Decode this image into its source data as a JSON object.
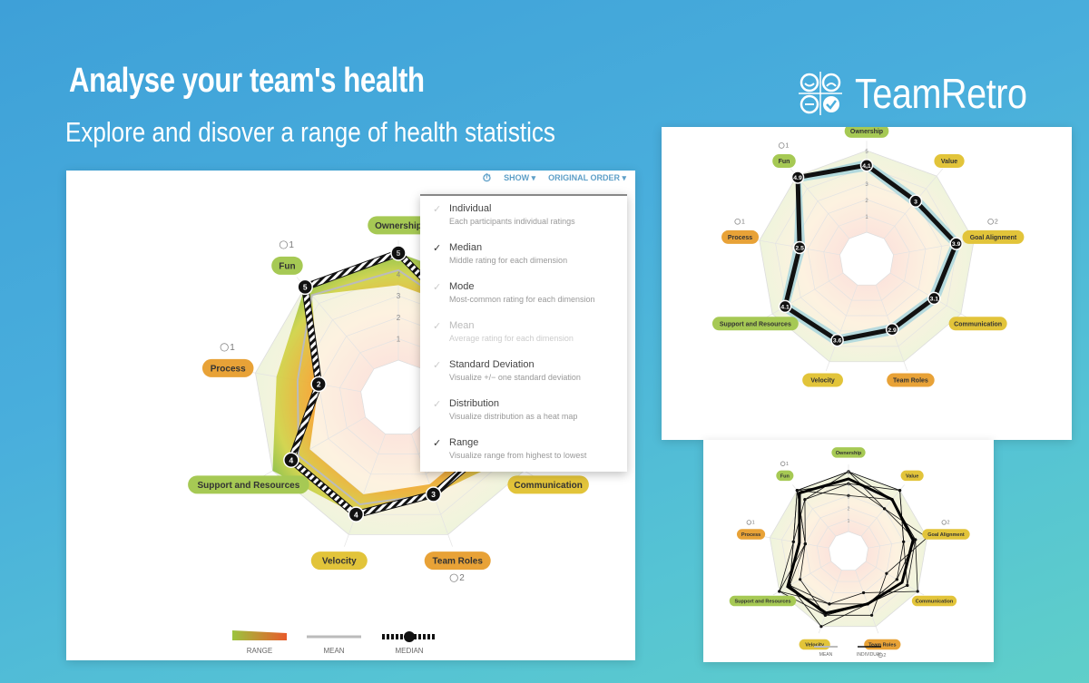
{
  "header": {
    "title": "Analyse your team's health",
    "subtitle": "Explore and disover a range of health statistics"
  },
  "brand": {
    "name": "TeamRetro"
  },
  "colors": {
    "green_label": "#a6c954",
    "yellow_label": "#e2c43a",
    "orange_label": "#e8a237",
    "accent": "#5fa0c8"
  },
  "toolbar": {
    "timer_icon": "timer-icon",
    "show_label": "SHOW ▾",
    "order_label": "ORIGINAL ORDER ▾"
  },
  "show_menu": [
    {
      "label": "Individual",
      "desc": "Each participants individual ratings",
      "checked": false,
      "dim": false
    },
    {
      "label": "Median",
      "desc": "Middle rating for each dimension",
      "checked": true,
      "dim": false
    },
    {
      "label": "Mode",
      "desc": "Most-common rating for each dimension",
      "checked": false,
      "dim": false
    },
    {
      "label": "Mean",
      "desc": "Average rating for each dimension",
      "checked": false,
      "dim": true
    },
    {
      "label": "Standard Deviation",
      "desc": "Visualize +/− one standard deviation",
      "checked": false,
      "dim": false
    },
    {
      "label": "Distribution",
      "desc": "Visualize distribution as a heat map",
      "checked": false,
      "dim": false
    },
    {
      "label": "Range",
      "desc": "Visualize range from highest to lowest",
      "checked": true,
      "dim": false
    }
  ],
  "chart_data": [
    {
      "type": "radar",
      "name": "main",
      "dimensions": [
        "Ownership",
        "Value",
        "Goal Alignment",
        "Communication",
        "Team Roles",
        "Velocity",
        "Support and Resources",
        "Process",
        "Fun"
      ],
      "label_colors": [
        "green",
        "yellow",
        "yellow",
        "yellow",
        "orange",
        "yellow",
        "green",
        "orange",
        "green"
      ],
      "badges": [
        {
          "dimension": "Fun",
          "text": "1"
        },
        {
          "dimension": "Process",
          "text": "1"
        },
        {
          "dimension": "Team Roles",
          "text": "2"
        }
      ],
      "median": [
        5,
        3,
        3,
        3,
        3,
        4,
        4,
        2,
        5
      ],
      "median_labels": [
        "5",
        "3",
        "3",
        "3",
        "3",
        "4",
        "4",
        "2",
        "5"
      ],
      "range_max": [
        5,
        5,
        5,
        4,
        3,
        4,
        5,
        4,
        5
      ],
      "range_min": [
        3.5,
        3.5,
        3,
        2.5,
        2.5,
        3,
        3,
        2,
        4.5
      ],
      "mean": [
        4.2,
        3.2,
        3,
        3,
        3,
        3.5,
        3.6,
        3,
        4.5
      ],
      "ticks": [
        "1",
        "2",
        "3",
        "4",
        "5"
      ],
      "legend": [
        "RANGE",
        "MEAN",
        "MEDIAN"
      ]
    },
    {
      "type": "radar",
      "name": "top-right",
      "dimensions": [
        "Ownership",
        "Value",
        "Goal Alignment",
        "Communication",
        "Team Roles",
        "Velocity",
        "Support and Resources",
        "Process",
        "Fun"
      ],
      "badges": [
        {
          "dimension": "Fun",
          "text": "1"
        },
        {
          "dimension": "Process",
          "text": "1"
        },
        {
          "dimension": "Goal Alignment",
          "text": "2"
        }
      ],
      "median": [
        4.1,
        3,
        3.9,
        3.1,
        2.9,
        3.6,
        4.1,
        2.5,
        4.9
      ],
      "median_labels": [
        "4.1",
        "3",
        "3.9",
        "3.1",
        "2.9",
        "3.6",
        "4.1",
        "2.5",
        "4.9"
      ],
      "ticks": [
        "1",
        "2",
        "3",
        "4",
        "5"
      ]
    },
    {
      "type": "radar",
      "name": "bottom-right",
      "dimensions": [
        "Ownership",
        "Value",
        "Goal Alignment",
        "Communication",
        "Team Roles",
        "Velocity",
        "Support and Resources",
        "Process",
        "Fun"
      ],
      "badges": [
        {
          "dimension": "Fun",
          "text": "1"
        },
        {
          "dimension": "Process",
          "text": "1"
        },
        {
          "dimension": "Goal Alignment",
          "text": "2"
        },
        {
          "dimension": "Team Roles",
          "text": "2"
        }
      ],
      "individuals": [
        [
          5,
          4,
          4,
          3,
          3,
          4,
          4,
          2,
          5
        ],
        [
          4,
          5,
          3,
          4,
          3,
          3,
          5,
          3,
          5
        ],
        [
          5,
          3,
          5,
          2,
          4,
          4,
          3,
          2,
          4
        ],
        [
          3,
          4,
          4,
          5,
          2,
          3,
          4,
          3,
          5
        ],
        [
          5,
          5,
          3,
          3,
          3,
          4,
          5,
          2,
          5
        ],
        [
          4,
          3,
          4,
          4,
          3,
          5,
          4,
          3,
          4
        ]
      ],
      "mean_line": [
        4.4,
        4,
        3.8,
        3.5,
        3,
        3.8,
        4.2,
        2.5,
        4.7
      ],
      "ticks": [
        "1",
        "2",
        "3",
        "4",
        "5"
      ],
      "legend": [
        "MEAN",
        "INDIVIDUAL"
      ]
    }
  ]
}
